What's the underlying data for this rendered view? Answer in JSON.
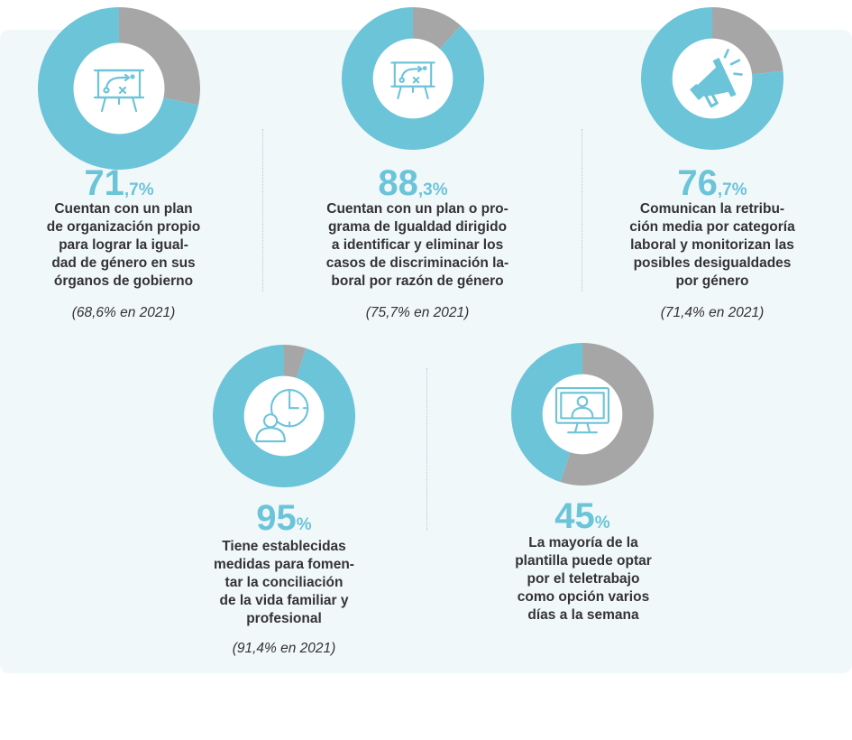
{
  "colors": {
    "accent": "#6cc4d9",
    "rest": "#a6a6a6",
    "icon": "#6cc4d9",
    "text": "#333333"
  },
  "chart_data": {
    "type": "pie",
    "stats": [
      {
        "big": "71",
        "small": ",7%",
        "value": 71.7,
        "lines": [
          "Cuentan con un plan",
          "de organización propio",
          "para lograr la igual-",
          "dad de género en sus",
          "órganos de gobierno"
        ],
        "previous": "(68,6% en 2021)",
        "icon": "strategy-board-icon"
      },
      {
        "big": "88",
        "small": ",3%",
        "value": 88.3,
        "lines": [
          "Cuentan con un plan o pro-",
          "grama de Igualdad dirigido",
          "a identificar y eliminar los",
          "casos de discriminación la-",
          "boral por razón de género"
        ],
        "previous": "(75,7% en 2021)",
        "icon": "strategy-board-icon"
      },
      {
        "big": "76",
        "small": ",7%",
        "value": 76.7,
        "lines": [
          "Comunican la retribu-",
          "ción media por categoría",
          "laboral y monitorizan las",
          "posibles desigualdades",
          "por género"
        ],
        "previous": "(71,4% en 2021)",
        "icon": "megaphone-icon"
      },
      {
        "big": "95",
        "small": "%",
        "value": 95,
        "lines": [
          "Tiene establecidas",
          "medidas para fomen-",
          "tar la conciliación",
          "de la vida familiar y",
          "profesional"
        ],
        "previous": "(91,4% en 2021)",
        "icon": "person-clock-icon"
      },
      {
        "big": "45",
        "small": "%",
        "value": 45,
        "lines": [
          "La mayoría de la",
          "plantilla puede optar",
          "por el teletrabajo",
          "como opción varios",
          "días a la semana"
        ],
        "previous": "",
        "icon": "remote-work-monitor-icon"
      }
    ]
  }
}
